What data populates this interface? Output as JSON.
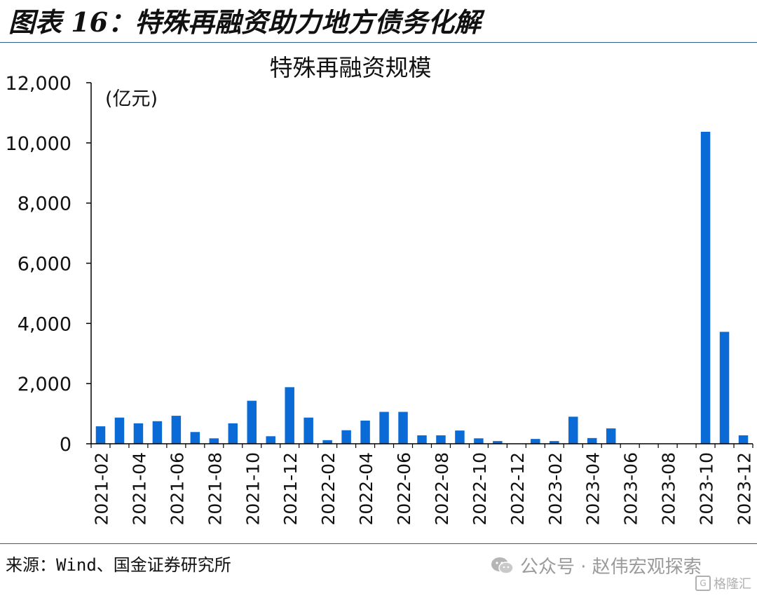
{
  "figure_title": "图表 16：特殊再融资助力地方债务化解",
  "source": "来源：Wind、国金证券研究所",
  "watermark": "公众号 · 赵伟宏观探索",
  "corner_logo": "格隆汇",
  "colors": {
    "bar": "#0a6ad6",
    "rule": "#2d5f93",
    "watermark": "#9a9a9a"
  },
  "icons": {
    "watermark": "wechat-icon",
    "corner": "gelonghui-logo-icon"
  },
  "chart_data": {
    "type": "bar",
    "title": "特殊再融资规模",
    "unit_label": "(亿元)",
    "xlabel": "",
    "ylabel": "",
    "ylim": [
      0,
      12000
    ],
    "yticks": [
      0,
      2000,
      4000,
      6000,
      8000,
      10000,
      12000
    ],
    "ytick_labels": [
      "0",
      "2,000",
      "4,000",
      "6,000",
      "8,000",
      "10,000",
      "12,000"
    ],
    "grid": false,
    "legend": "none",
    "categories": [
      "2021-02",
      "2021-03",
      "2021-04",
      "2021-05",
      "2021-06",
      "2021-07",
      "2021-08",
      "2021-09",
      "2021-10",
      "2021-11",
      "2021-12",
      "2022-01",
      "2022-02",
      "2022-03",
      "2022-04",
      "2022-05",
      "2022-06",
      "2022-07",
      "2022-08",
      "2022-09",
      "2022-10",
      "2022-11",
      "2022-12",
      "2023-01",
      "2023-02",
      "2023-03",
      "2023-04",
      "2023-05",
      "2023-06",
      "2023-07",
      "2023-08",
      "2023-09",
      "2023-10",
      "2023-11",
      "2023-12"
    ],
    "tick_labels": [
      "2021-02",
      "2021-04",
      "2021-06",
      "2021-08",
      "2021-10",
      "2021-12",
      "2022-02",
      "2022-04",
      "2022-06",
      "2022-08",
      "2022-10",
      "2022-12",
      "2023-02",
      "2023-04",
      "2023-06",
      "2023-08",
      "2023-10",
      "2023-12"
    ],
    "values": [
      580,
      870,
      680,
      750,
      930,
      390,
      180,
      680,
      1430,
      250,
      1880,
      870,
      120,
      450,
      770,
      1060,
      1060,
      280,
      280,
      440,
      180,
      90,
      0,
      160,
      90,
      900,
      190,
      510,
      0,
      0,
      0,
      0,
      10370,
      3720,
      280
    ]
  }
}
